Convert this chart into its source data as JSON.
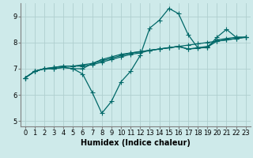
{
  "xlabel": "Humidex (Indice chaleur)",
  "ylabel": "",
  "xlim": [
    -0.5,
    23.5
  ],
  "ylim": [
    4.8,
    9.5
  ],
  "background_color": "#ceeaea",
  "grid_color": "#b0cfcf",
  "line_color": "#006868",
  "series": [
    [
      6.65,
      6.9,
      7.0,
      7.0,
      7.05,
      7.0,
      6.8,
      6.1,
      5.3,
      5.75,
      6.5,
      6.9,
      7.5,
      8.55,
      8.85,
      9.3,
      9.1,
      8.3,
      7.8,
      7.8,
      8.2,
      8.5,
      8.2,
      8.2
    ],
    [
      6.65,
      6.9,
      7.0,
      7.0,
      7.05,
      7.0,
      7.0,
      7.2,
      7.35,
      7.45,
      7.55,
      7.6,
      7.65,
      7.7,
      7.75,
      7.8,
      7.85,
      7.9,
      7.95,
      8.0,
      8.05,
      8.1,
      8.15,
      8.2
    ],
    [
      6.65,
      6.9,
      7.0,
      7.05,
      7.1,
      7.1,
      7.15,
      7.2,
      7.3,
      7.4,
      7.5,
      7.6,
      7.65,
      7.7,
      7.75,
      7.8,
      7.85,
      7.75,
      7.8,
      7.85,
      8.1,
      8.15,
      8.2,
      8.2
    ],
    [
      6.65,
      6.9,
      7.0,
      7.05,
      7.1,
      7.1,
      7.1,
      7.15,
      7.25,
      7.35,
      7.45,
      7.55,
      7.6,
      7.7,
      7.75,
      7.8,
      7.85,
      7.75,
      7.78,
      7.82,
      8.05,
      8.1,
      8.15,
      8.2
    ]
  ],
  "xtick_labels": [
    "0",
    "1",
    "2",
    "3",
    "4",
    "5",
    "6",
    "7",
    "8",
    "9",
    "10",
    "11",
    "12",
    "13",
    "14",
    "15",
    "16",
    "17",
    "18",
    "19",
    "20",
    "21",
    "22",
    "23"
  ],
  "ytick_values": [
    5,
    6,
    7,
    8,
    9
  ],
  "marker": "+",
  "marker_size": 4,
  "line_width": 0.9,
  "tick_fontsize": 6,
  "xlabel_fontsize": 7
}
